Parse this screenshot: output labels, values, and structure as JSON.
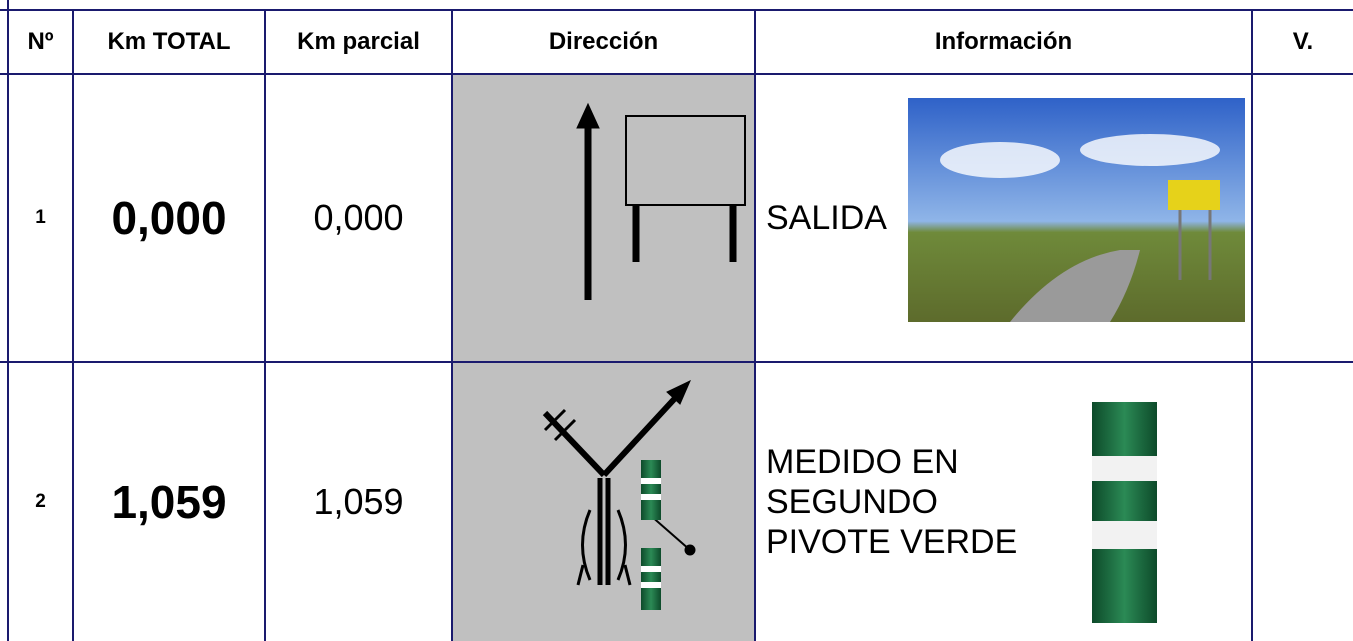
{
  "header": {
    "columns": [
      "Nº",
      "Km TOTAL",
      "Km parcial",
      "Dirección",
      "Información",
      "V."
    ]
  },
  "rows": [
    {
      "number": "1",
      "km_total": "0,000",
      "km_parcial": "0,000",
      "info": [
        "SALIDA"
      ]
    },
    {
      "number": "2",
      "km_total": "1,059",
      "km_parcial": "1,059",
      "info": [
        "MEDIDO EN",
        "SEGUNDO",
        "PIVOTE VERDE"
      ]
    }
  ]
}
